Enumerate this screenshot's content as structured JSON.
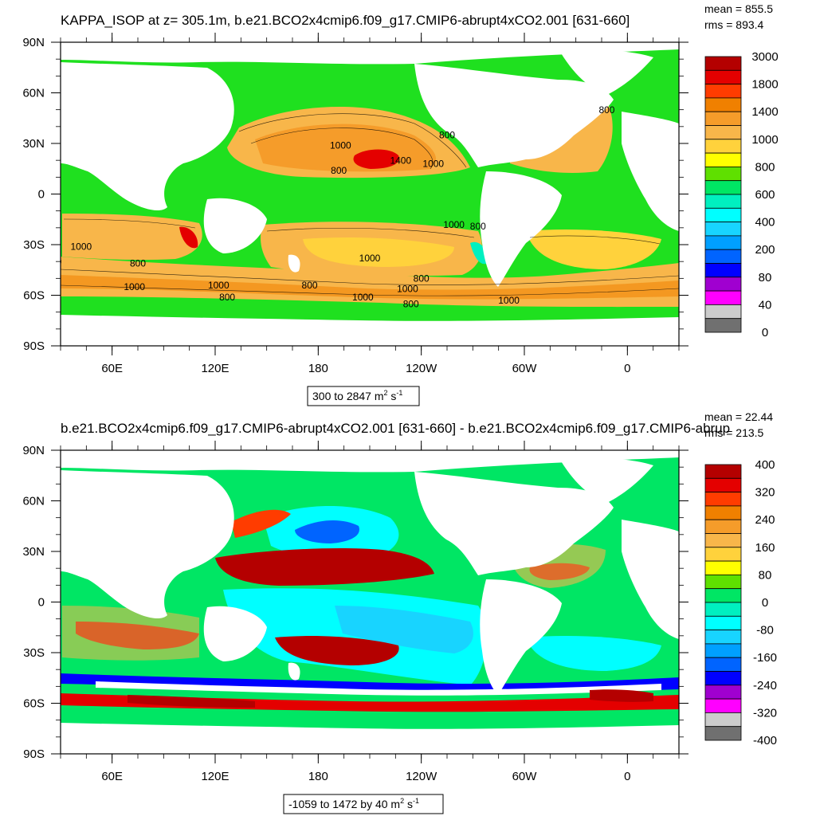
{
  "chart_data": [
    {
      "type": "heatmap",
      "title": "KAPPA_ISOP at z= 305.1m, b.e21.BCO2x4cmip6.f09_g17.CMIP6-abrupt4xCO2.001 [631-660]",
      "stats": {
        "mean": "mean = 855.5",
        "rms": "rms = 893.4"
      },
      "xticks": [
        "60E",
        "120E",
        "180",
        "120W",
        "60W",
        "0"
      ],
      "yticks": [
        "90N",
        "60N",
        "30N",
        "0",
        "30S",
        "60S",
        "90S"
      ],
      "range_label": {
        "text": "300 to 2847 m",
        "sup1": "2",
        "mid": " s",
        "sup2": "-1"
      },
      "colorbar_labels": [
        "3000",
        "1800",
        "1400",
        "1000",
        "800",
        "600",
        "400",
        "200",
        "80",
        "40",
        "0"
      ],
      "colorbar_colors": [
        "#b40000",
        "#e40000",
        "#ff3c00",
        "#f08000",
        "#f59c2a",
        "#f8b64a",
        "#ffd23c",
        "#ffff00",
        "#5fe000",
        "#00e664",
        "#00f0c0",
        "#00ffff",
        "#18d4ff",
        "#00a0ff",
        "#0064ff",
        "#0000ff",
        "#a000d0",
        "#ff00ff",
        "#cccccc",
        "#707070"
      ],
      "contour_labels": [
        {
          "text": "1000",
          "lon": 193,
          "lat": 27
        },
        {
          "text": "800",
          "lon": 192,
          "lat": 12
        },
        {
          "text": "1400",
          "lon": 228,
          "lat": 18
        },
        {
          "text": "1000",
          "lon": 247,
          "lat": 16
        },
        {
          "text": "800",
          "lon": 255,
          "lat": 33
        },
        {
          "text": "800",
          "lon": 348,
          "lat": 48
        },
        {
          "text": "1000",
          "lon": 42,
          "lat": -33
        },
        {
          "text": "800",
          "lon": 75,
          "lat": -43
        },
        {
          "text": "1000",
          "lon": 73,
          "lat": -57
        },
        {
          "text": "1000",
          "lon": 122,
          "lat": -56
        },
        {
          "text": "800",
          "lon": 127,
          "lat": -63
        },
        {
          "text": "800",
          "lon": 175,
          "lat": -56
        },
        {
          "text": "1000",
          "lon": 210,
          "lat": -40
        },
        {
          "text": "1000",
          "lon": 259,
          "lat": -20
        },
        {
          "text": "800",
          "lon": 273,
          "lat": -21
        },
        {
          "text": "800",
          "lon": 240,
          "lat": -52
        },
        {
          "text": "1000",
          "lon": 232,
          "lat": -58
        },
        {
          "text": "1000",
          "lon": 206,
          "lat": -63
        },
        {
          "text": "800",
          "lon": 234,
          "lat": -67
        },
        {
          "text": "1000",
          "lon": 291,
          "lat": -65
        },
        {
          "text": "800",
          "lon": 26,
          "lat": -42
        },
        {
          "text": "800",
          "lon": 16,
          "lat": -45
        }
      ]
    },
    {
      "type": "heatmap",
      "title": "b.e21.BCO2x4cmip6.f09_g17.CMIP6-abrupt4xCO2.001 [631-660] - b.e21.BCO2x4cmip6.f09_g17.CMIP6-abrup",
      "stats": {
        "mean": "mean = 22.44",
        "rms": "rms = 213.5"
      },
      "xticks": [
        "60E",
        "120E",
        "180",
        "120W",
        "60W",
        "0"
      ],
      "yticks": [
        "90N",
        "60N",
        "30N",
        "0",
        "30S",
        "60S",
        "90S"
      ],
      "range_label": {
        "text": "-1059 to 1472 by 40 m",
        "sup1": "2",
        "mid": " s",
        "sup2": "-1"
      },
      "colorbar_labels": [
        "400",
        "320",
        "240",
        "160",
        "80",
        "0",
        "-80",
        "-160",
        "-240",
        "-320",
        "-400"
      ],
      "colorbar_colors": [
        "#b40000",
        "#e40000",
        "#ff3c00",
        "#f08000",
        "#f59c2a",
        "#f8b64a",
        "#ffd23c",
        "#ffff00",
        "#5fe000",
        "#00e664",
        "#00f0c0",
        "#00ffff",
        "#18d4ff",
        "#00a0ff",
        "#0064ff",
        "#0000ff",
        "#a000d0",
        "#ff00ff",
        "#cccccc",
        "#707070"
      ]
    }
  ]
}
